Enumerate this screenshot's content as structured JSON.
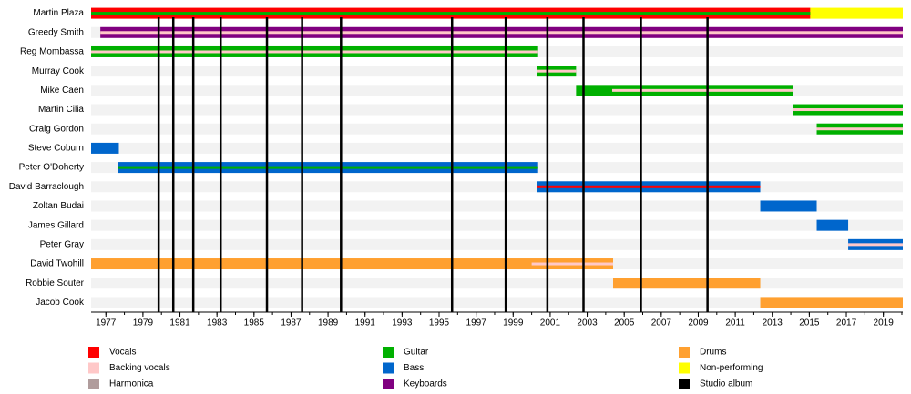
{
  "chart_data": {
    "type": "timeline",
    "xlim": [
      1976.2,
      2020.05
    ],
    "xticks": [
      1977,
      1979,
      1981,
      1983,
      1985,
      1987,
      1989,
      1991,
      1993,
      1995,
      1997,
      1999,
      2001,
      2003,
      2005,
      2007,
      2009,
      2011,
      2013,
      2015,
      2017,
      2019
    ],
    "roles": [
      {
        "name": "Vocals",
        "color": "#ff0000"
      },
      {
        "name": "Backing vocals",
        "color": "#ffc8c8"
      },
      {
        "name": "Harmonica",
        "color": "#b09c9c"
      },
      {
        "name": "Guitar",
        "color": "#00b000"
      },
      {
        "name": "Bass",
        "color": "#0066cc"
      },
      {
        "name": "Keyboards",
        "color": "#800080"
      },
      {
        "name": "Drums",
        "color": "#ffa030"
      },
      {
        "name": "Non-performing",
        "color": "#ffff00"
      },
      {
        "name": "Studio album",
        "color": "#000000"
      }
    ],
    "albums": [
      1979.85,
      1980.64,
      1981.72,
      1983.2,
      1985.7,
      1987.6,
      1989.7,
      1995.7,
      1998.6,
      2000.85,
      2002.8,
      2005.9,
      2009.5
    ],
    "members": [
      {
        "name": "Martin Plaza",
        "bars": [
          {
            "role": "Vocals",
            "start": 1976.2,
            "end": 2015.05
          },
          {
            "role": "Non-performing",
            "start": 2015.05,
            "end": 2020.05
          }
        ],
        "stripes": [
          {
            "role": "Guitar",
            "start": 1976.2,
            "end": 2015.05
          }
        ]
      },
      {
        "name": "Greedy Smith",
        "bars": [
          {
            "role": "Keyboards",
            "start": 1976.7,
            "end": 2020.05
          }
        ],
        "stripes": [
          {
            "role": "Backing vocals",
            "start": 1976.7,
            "end": 2020.05
          }
        ]
      },
      {
        "name": "Reg Mombassa",
        "bars": [
          {
            "role": "Guitar",
            "start": 1976.2,
            "end": 2000.35
          }
        ],
        "stripes": [
          {
            "role": "Backing vocals",
            "start": 1976.2,
            "end": 2000.35
          }
        ]
      },
      {
        "name": "Murray Cook",
        "bars": [
          {
            "role": "Guitar",
            "start": 2000.3,
            "end": 2002.4
          }
        ],
        "stripes": [
          {
            "role": "Backing vocals",
            "start": 2000.3,
            "end": 2002.4
          }
        ]
      },
      {
        "name": "Mike Caen",
        "bars": [
          {
            "role": "Guitar",
            "start": 2002.4,
            "end": 2014.1
          }
        ],
        "stripes": [
          {
            "role": "Backing vocals",
            "start": 2004.35,
            "end": 2014.1
          }
        ]
      },
      {
        "name": "Martin Cilia",
        "bars": [
          {
            "role": "Guitar",
            "start": 2014.1,
            "end": 2020.05
          }
        ],
        "stripes": [
          {
            "role": "Backing vocals",
            "start": 2014.1,
            "end": 2020.05
          }
        ]
      },
      {
        "name": "Craig Gordon",
        "bars": [
          {
            "role": "Guitar",
            "start": 2015.4,
            "end": 2020.05
          }
        ],
        "stripes": [
          {
            "role": "Backing vocals",
            "start": 2015.4,
            "end": 2020.05
          }
        ]
      },
      {
        "name": "Steve Coburn",
        "bars": [
          {
            "role": "Bass",
            "start": 1976.2,
            "end": 1977.7
          }
        ],
        "stripes": []
      },
      {
        "name": "Peter O'Doherty",
        "bars": [
          {
            "role": "Bass",
            "start": 1977.65,
            "end": 2000.35
          }
        ],
        "stripes": [
          {
            "role": "Guitar",
            "start": 1977.65,
            "end": 2000.35
          }
        ]
      },
      {
        "name": "David Barraclough",
        "bars": [
          {
            "role": "Bass",
            "start": 2000.3,
            "end": 2012.35
          }
        ],
        "stripes": [
          {
            "role": "Vocals",
            "start": 2000.3,
            "end": 2012.35
          }
        ]
      },
      {
        "name": "Zoltan Budai",
        "bars": [
          {
            "role": "Bass",
            "start": 2012.35,
            "end": 2015.4
          }
        ],
        "stripes": []
      },
      {
        "name": "James Gillard",
        "bars": [
          {
            "role": "Bass",
            "start": 2015.4,
            "end": 2017.1
          }
        ],
        "stripes": []
      },
      {
        "name": "Peter Gray",
        "bars": [
          {
            "role": "Bass",
            "start": 2017.1,
            "end": 2020.05
          }
        ],
        "stripes": [
          {
            "role": "Backing vocals",
            "start": 2017.1,
            "end": 2020.05
          }
        ]
      },
      {
        "name": "David Twohill",
        "bars": [
          {
            "role": "Drums",
            "start": 1976.2,
            "end": 2004.4
          }
        ],
        "stripes": [
          {
            "role": "Backing vocals",
            "start": 2000.0,
            "end": 2004.4
          }
        ]
      },
      {
        "name": "Robbie Souter",
        "bars": [
          {
            "role": "Drums",
            "start": 2004.4,
            "end": 2012.35
          }
        ],
        "stripes": []
      },
      {
        "name": "Jacob Cook",
        "bars": [
          {
            "role": "Drums",
            "start": 2012.35,
            "end": 2020.05
          }
        ],
        "stripes": []
      }
    ]
  }
}
